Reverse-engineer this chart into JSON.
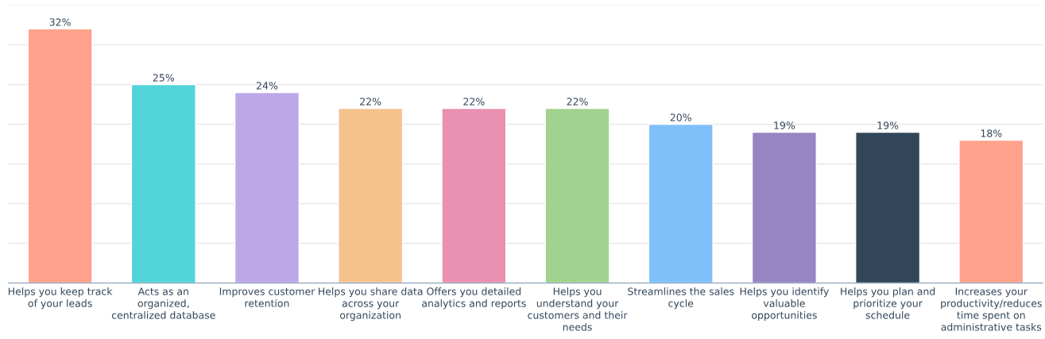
{
  "chart_data": {
    "type": "bar",
    "categories": [
      "Helps you keep track\nof your leads",
      "Acts as an\norganized,\ncentralized database",
      "Improves customer\nretention",
      "Helps you share data\nacross your\norganization",
      "Offers you detailed\nanalytics and reports",
      "Helps you\nunderstand your\ncustomers and their\nneeds",
      "Streamlines the sales\ncycle",
      "Helps you identify\nvaluable\nopportunities",
      "Helps you plan and\nprioritize your\nschedule",
      "Increases your\nproductivity/reduces\ntime spent on\nadministrative tasks"
    ],
    "values": [
      32,
      25,
      24,
      22,
      22,
      22,
      20,
      19,
      19,
      18
    ],
    "value_labels": [
      "32%",
      "25%",
      "24%",
      "22%",
      "22%",
      "22%",
      "20%",
      "19%",
      "19%",
      "18%"
    ],
    "colors": [
      "#ffa28b",
      "#51d3d9",
      "#bda7e8",
      "#f5c28e",
      "#ea90b1",
      "#a2d28f",
      "#80c0fa",
      "#9784c2",
      "#32465a",
      "#ffa28b"
    ],
    "ylim": [
      0,
      35
    ],
    "yticks": [
      {
        "value": 0,
        "label": null
      },
      {
        "value": 5,
        "label": null
      },
      {
        "value": 10,
        "label": null
      },
      {
        "value": 15,
        "label": null
      },
      {
        "value": 20,
        "label": null
      },
      {
        "value": 25,
        "label": null
      },
      {
        "value": 30,
        "label": null
      },
      {
        "value": 35,
        "label": null
      }
    ],
    "grid": "y",
    "tick_labels": "x"
  }
}
